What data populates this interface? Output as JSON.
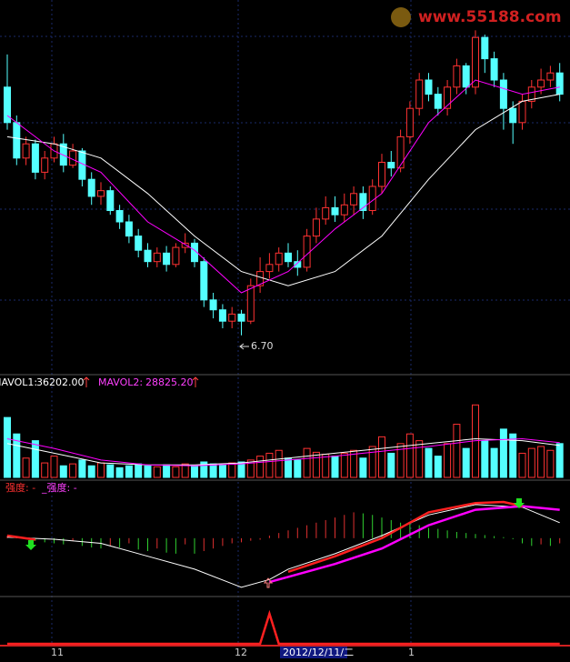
{
  "watermark": "www.55188.com",
  "price_panel": {
    "ylim": [
      6.5,
      9.0
    ],
    "candles": {
      "open": [
        8.45,
        8.2,
        7.95,
        8.05,
        7.85,
        7.95,
        8.05,
        7.9,
        8.0,
        7.8,
        7.68,
        7.72,
        7.58,
        7.5,
        7.4,
        7.3,
        7.22,
        7.28,
        7.2,
        7.32,
        7.35,
        7.22,
        6.95,
        6.88,
        6.8,
        6.85,
        6.8,
        7.05,
        7.15,
        7.2,
        7.28,
        7.22,
        7.18,
        7.4,
        7.52,
        7.6,
        7.55,
        7.62,
        7.7,
        7.58,
        7.75,
        7.92,
        7.88,
        8.1,
        8.3,
        8.5,
        8.4,
        8.3,
        8.45,
        8.6,
        8.45,
        8.8,
        8.65,
        8.5,
        8.3,
        8.2,
        8.35,
        8.45,
        8.5,
        8.55
      ],
      "close": [
        8.2,
        7.95,
        8.05,
        7.85,
        7.95,
        8.05,
        7.9,
        8.0,
        7.8,
        7.68,
        7.72,
        7.58,
        7.5,
        7.4,
        7.3,
        7.22,
        7.28,
        7.2,
        7.32,
        7.35,
        7.22,
        6.95,
        6.88,
        6.8,
        6.85,
        6.8,
        7.05,
        7.15,
        7.2,
        7.28,
        7.22,
        7.18,
        7.4,
        7.52,
        7.6,
        7.55,
        7.62,
        7.7,
        7.58,
        7.75,
        7.92,
        7.88,
        8.1,
        8.3,
        8.5,
        8.4,
        8.3,
        8.45,
        8.6,
        8.45,
        8.8,
        8.65,
        8.5,
        8.3,
        8.2,
        8.35,
        8.45,
        8.5,
        8.55,
        8.4
      ],
      "high": [
        8.68,
        8.25,
        8.1,
        8.08,
        8.0,
        8.1,
        8.12,
        8.05,
        8.02,
        7.85,
        7.78,
        7.75,
        7.62,
        7.55,
        7.45,
        7.35,
        7.32,
        7.33,
        7.35,
        7.42,
        7.38,
        7.25,
        7.0,
        6.92,
        6.9,
        6.88,
        7.1,
        7.25,
        7.28,
        7.32,
        7.35,
        7.3,
        7.45,
        7.6,
        7.68,
        7.68,
        7.7,
        7.75,
        7.75,
        7.8,
        7.98,
        8.0,
        8.15,
        8.35,
        8.55,
        8.55,
        8.45,
        8.5,
        8.65,
        8.62,
        8.85,
        8.82,
        8.7,
        8.55,
        8.35,
        8.4,
        8.5,
        8.58,
        8.6,
        8.62
      ],
      "low": [
        8.15,
        7.9,
        7.9,
        7.8,
        7.8,
        7.92,
        7.85,
        7.88,
        7.75,
        7.62,
        7.62,
        7.55,
        7.45,
        7.35,
        7.25,
        7.18,
        7.18,
        7.15,
        7.18,
        7.28,
        7.18,
        6.9,
        6.82,
        6.75,
        6.75,
        6.7,
        6.78,
        7.0,
        7.1,
        7.15,
        7.18,
        7.12,
        7.15,
        7.35,
        7.48,
        7.5,
        7.5,
        7.55,
        7.52,
        7.55,
        7.7,
        7.82,
        7.85,
        8.05,
        8.25,
        8.35,
        8.25,
        8.25,
        8.4,
        8.4,
        8.4,
        8.55,
        8.45,
        8.15,
        8.05,
        8.15,
        8.3,
        8.4,
        8.45,
        8.35
      ]
    },
    "ma_lines": [
      {
        "color": "#ffffff",
        "x": [
          0,
          5,
          10,
          15,
          20,
          25,
          30,
          35,
          40,
          45,
          50,
          55,
          59
        ],
        "values": [
          8.1,
          8.05,
          7.95,
          7.7,
          7.4,
          7.15,
          7.05,
          7.15,
          7.4,
          7.8,
          8.15,
          8.35,
          8.4
        ]
      },
      {
        "color": "#ff00ff",
        "x": [
          0,
          5,
          10,
          15,
          20,
          25,
          30,
          35,
          40,
          45,
          50,
          55,
          59
        ],
        "values": [
          8.25,
          8.0,
          7.85,
          7.5,
          7.3,
          7.0,
          7.15,
          7.45,
          7.7,
          8.2,
          8.5,
          8.4,
          8.45
        ]
      }
    ],
    "low_label": "6.70"
  },
  "volume_panel": {
    "mavol1_label": "MAVOL1:",
    "mavol1": "36202.00",
    "mavol2_label": "MAVOL2:",
    "mavol2": "28825.20",
    "ylim": [
      0,
      80000
    ],
    "volumes": [
      62000,
      45000,
      20000,
      38000,
      15000,
      22000,
      12000,
      14000,
      18000,
      12000,
      15000,
      13000,
      10000,
      12000,
      14000,
      12000,
      11000,
      13000,
      11000,
      14000,
      12000,
      16000,
      14000,
      13000,
      15000,
      16000,
      18000,
      22000,
      25000,
      28000,
      20000,
      18000,
      30000,
      26000,
      24000,
      22000,
      25000,
      28000,
      20000,
      32000,
      42000,
      25000,
      35000,
      45000,
      38000,
      30000,
      22000,
      35000,
      55000,
      30000,
      75000,
      38000,
      30000,
      50000,
      45000,
      25000,
      30000,
      32000,
      28000,
      35000
    ],
    "ma_lines": [
      {
        "color": "#ffffff",
        "x": [
          0,
          5,
          10,
          15,
          20,
          25,
          30,
          35,
          40,
          45,
          50,
          55,
          59
        ],
        "values": [
          35000,
          25000,
          15000,
          13000,
          13000,
          15000,
          20000,
          25000,
          30000,
          35000,
          40000,
          38000,
          33000
        ]
      },
      {
        "color": "#ff00ff",
        "x": [
          0,
          5,
          10,
          15,
          20,
          25,
          30,
          35,
          40,
          45,
          50,
          55,
          59
        ],
        "values": [
          40000,
          30000,
          18000,
          13000,
          12000,
          14000,
          18000,
          22000,
          27000,
          32000,
          38000,
          40000,
          36000
        ]
      }
    ]
  },
  "indicator_panel": {
    "label1": "强度: -",
    "label2": "_强度: -",
    "ylim": [
      -1.2,
      1.0
    ],
    "bars": [
      0.05,
      0.03,
      0.0,
      -0.05,
      -0.08,
      -0.1,
      -0.12,
      -0.05,
      -0.15,
      -0.18,
      -0.2,
      -0.15,
      -0.18,
      -0.1,
      -0.22,
      -0.25,
      -0.2,
      -0.28,
      -0.3,
      -0.12,
      -0.3,
      -0.25,
      -0.2,
      -0.15,
      -0.1,
      -0.08,
      -0.05,
      -0.03,
      0.05,
      0.1,
      0.15,
      0.2,
      0.25,
      0.3,
      0.35,
      0.4,
      0.45,
      0.5,
      0.48,
      0.45,
      0.4,
      0.35,
      0.3,
      0.28,
      0.25,
      0.2,
      0.18,
      0.15,
      0.12,
      0.1,
      0.08,
      0.06,
      0.04,
      0.02,
      -0.02,
      -0.1,
      -0.15,
      -0.12,
      -0.15,
      -0.1
    ],
    "lines": [
      {
        "color": "#ffffff",
        "width": 1,
        "x": [
          0,
          5,
          10,
          15,
          20,
          25,
          28,
          30,
          35,
          40,
          45,
          50,
          55,
          59
        ],
        "values": [
          0.02,
          -0.02,
          -0.1,
          -0.35,
          -0.6,
          -0.95,
          -0.8,
          -0.6,
          -0.3,
          0.05,
          0.45,
          0.65,
          0.6,
          0.3
        ]
      },
      {
        "color": "#ff00ff",
        "width": 2.5,
        "x": [
          28,
          30,
          35,
          40,
          45,
          50,
          55,
          59
        ],
        "values": [
          -0.85,
          -0.75,
          -0.5,
          -0.2,
          0.25,
          0.55,
          0.62,
          0.55
        ]
      },
      {
        "color": "#ff2020",
        "width": 2.5,
        "x": [
          0,
          3,
          28,
          30,
          35,
          40,
          45,
          50,
          53,
          55
        ],
        "values": [
          0.05,
          -0.03,
          null,
          -0.65,
          -0.35,
          0.0,
          0.5,
          0.68,
          0.7,
          0.62
        ]
      }
    ]
  },
  "spike_panel": {
    "ylim": [
      0,
      1
    ],
    "values": [
      0,
      0,
      0,
      0,
      0,
      0,
      0,
      0,
      0,
      0,
      0,
      0,
      0,
      0,
      0,
      0,
      0,
      0,
      0,
      0,
      0,
      0,
      0,
      0,
      0,
      0,
      0,
      0,
      1,
      0,
      0,
      0,
      0,
      0,
      0,
      0,
      0,
      0,
      0,
      0,
      0,
      0,
      0,
      0,
      0,
      0,
      0,
      0,
      0,
      0,
      0,
      0,
      0,
      0,
      0,
      0,
      0,
      0,
      0,
      0
    ]
  },
  "x_axis": {
    "labels": [
      "11",
      "12",
      "2012/12/11/二",
      "1"
    ]
  }
}
